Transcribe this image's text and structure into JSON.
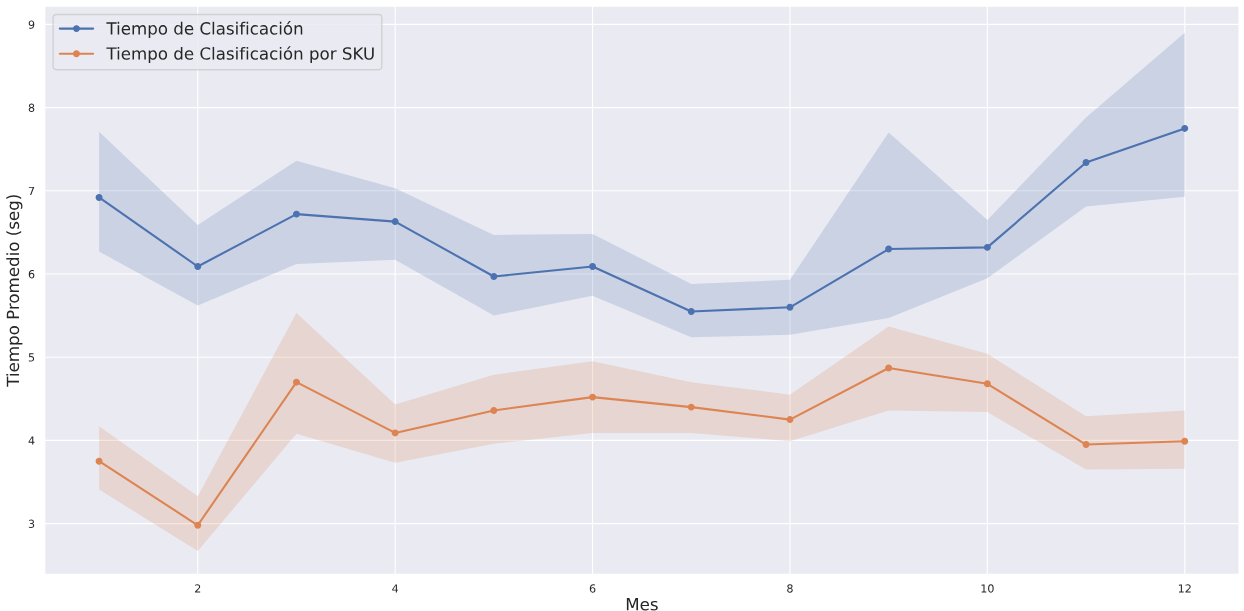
{
  "chart_data": {
    "type": "line",
    "xlabel": "Mes",
    "ylabel": "Tiempo Promedio (seg)",
    "x": [
      1,
      2,
      3,
      4,
      5,
      6,
      7,
      8,
      9,
      10,
      11,
      12
    ],
    "xlim": [
      0.45,
      12.55
    ],
    "xticks": [
      2,
      4,
      6,
      8,
      10,
      12
    ],
    "ylim": [
      2.39,
      9.22
    ],
    "yticks": [
      3,
      4,
      5,
      6,
      7,
      8,
      9
    ],
    "grid": true,
    "legend": "top left",
    "marker": "circle",
    "line_style": "solid",
    "series": [
      {
        "name": "Tiempo de Clasificación",
        "color": "#4c72b0",
        "values": [
          6.92,
          6.09,
          6.72,
          6.63,
          5.97,
          6.09,
          5.55,
          5.6,
          6.3,
          6.32,
          7.34,
          7.75
        ],
        "lower": [
          6.27,
          5.62,
          6.12,
          6.17,
          5.5,
          5.74,
          5.24,
          5.27,
          5.47,
          5.95,
          6.81,
          6.93
        ],
        "upper": [
          7.71,
          6.59,
          7.36,
          7.03,
          6.47,
          6.48,
          5.88,
          5.93,
          7.7,
          6.65,
          7.88,
          8.9
        ]
      },
      {
        "name": "Tiempo de Clasificación por SKU",
        "color": "#dd8452",
        "values": [
          3.75,
          2.98,
          4.7,
          4.09,
          4.36,
          4.52,
          4.4,
          4.25,
          4.87,
          4.68,
          3.95,
          3.99
        ],
        "lower": [
          3.41,
          2.67,
          4.08,
          3.73,
          3.96,
          4.09,
          4.09,
          3.99,
          4.36,
          4.34,
          3.65,
          3.66
        ],
        "upper": [
          4.17,
          3.33,
          5.53,
          4.43,
          4.79,
          4.95,
          4.7,
          4.55,
          5.37,
          5.04,
          4.29,
          4.36
        ]
      }
    ]
  }
}
